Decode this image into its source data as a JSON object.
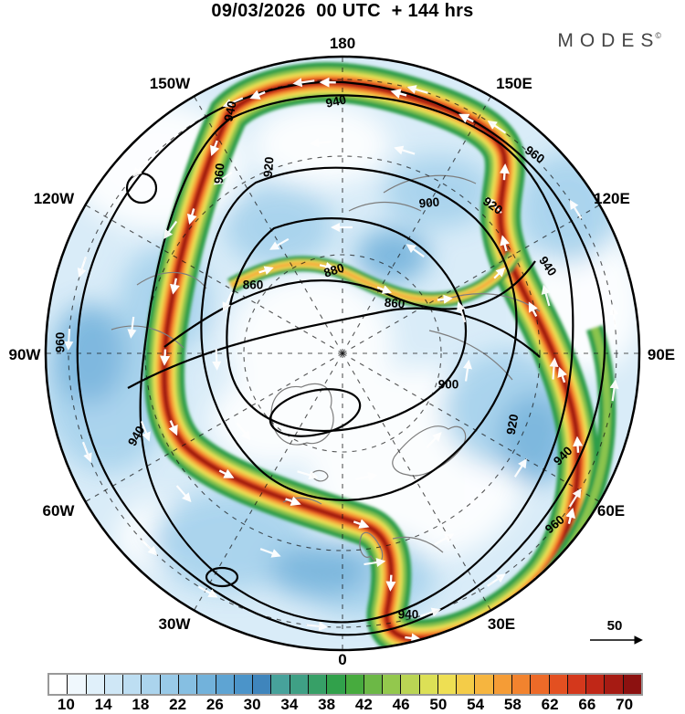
{
  "header": {
    "title": "09/03/2026  00 UTC  + 144 hrs",
    "logo": "MODES",
    "logo_mark": "©"
  },
  "map": {
    "lon_labels": [
      {
        "text": "180"
      },
      {
        "text": "150E"
      },
      {
        "text": "120E"
      },
      {
        "text": "90E"
      },
      {
        "text": "60E"
      },
      {
        "text": "30E"
      },
      {
        "text": "0"
      },
      {
        "text": "30W"
      },
      {
        "text": "60W"
      },
      {
        "text": "90W"
      },
      {
        "text": "120W"
      },
      {
        "text": "150W"
      }
    ],
    "contour_labels": [
      {
        "text": "960"
      },
      {
        "text": "940"
      },
      {
        "text": "920"
      },
      {
        "text": "960"
      },
      {
        "text": "940"
      },
      {
        "text": "900"
      },
      {
        "text": "920"
      },
      {
        "text": "960"
      },
      {
        "text": "940"
      },
      {
        "text": "880"
      },
      {
        "text": "860"
      },
      {
        "text": "860"
      },
      {
        "text": "900"
      },
      {
        "text": "920"
      },
      {
        "text": "940"
      },
      {
        "text": "960"
      },
      {
        "text": "940"
      },
      {
        "text": "940"
      }
    ],
    "contour_values": [
      860,
      880,
      900,
      920,
      940,
      960
    ],
    "reference_arrow_label": "50"
  },
  "colorbar": {
    "tick_labels": [
      "10",
      "14",
      "18",
      "22",
      "26",
      "30",
      "34",
      "38",
      "42",
      "46",
      "50",
      "54",
      "58",
      "62",
      "66",
      "70"
    ],
    "range_min": 8,
    "range_max": 72,
    "cell_step": 2,
    "cell_colors": [
      "#ffffff",
      "#f0f8fd",
      "#e0f0fa",
      "#cfe7f6",
      "#bddef2",
      "#abd4ed",
      "#99cae8",
      "#86bfe2",
      "#72b2db",
      "#5ea4d3",
      "#4b94c9",
      "#3f85bc",
      "#47a29b",
      "#3fa085",
      "#37a067",
      "#31a14b",
      "#47ab3e",
      "#6cb846",
      "#93c84d",
      "#bad554",
      "#dce056",
      "#eedf53",
      "#f4cc48",
      "#f6b53f",
      "#f59c36",
      "#f2832e",
      "#ed6a28",
      "#e35021",
      "#d4381c",
      "#c02717",
      "#a61b13",
      "#8c1110"
    ]
  }
}
